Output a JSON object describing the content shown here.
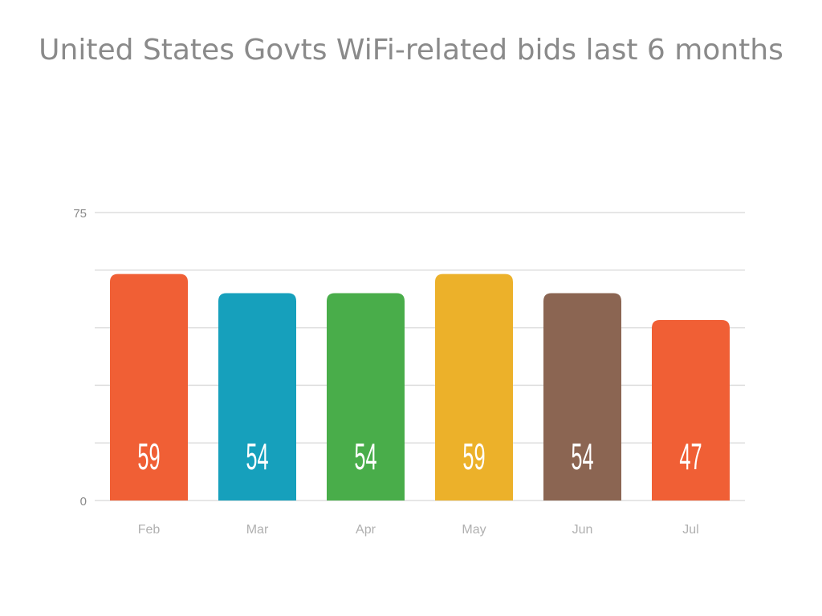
{
  "chart_data": {
    "type": "bar",
    "title": "United States Govts WiFi-related bids last 6 months",
    "categories": [
      "Feb",
      "Mar",
      "Apr",
      "May",
      "Jun",
      "Jul"
    ],
    "values": [
      59,
      54,
      54,
      59,
      54,
      47
    ],
    "value_labels": [
      "59",
      "54",
      "54",
      "59",
      "54",
      "47"
    ],
    "colors": [
      "#f05f35",
      "#16a0bc",
      "#49ad4a",
      "#ecb12a",
      "#8b6552",
      "#f05f35"
    ],
    "xlabel": "",
    "ylabel": "",
    "ylim": [
      0,
      75
    ],
    "ytick_labels": [
      "0",
      "75"
    ],
    "gridlines": [
      0,
      15,
      30,
      45,
      60,
      75
    ],
    "grid": true,
    "legend": "none"
  }
}
